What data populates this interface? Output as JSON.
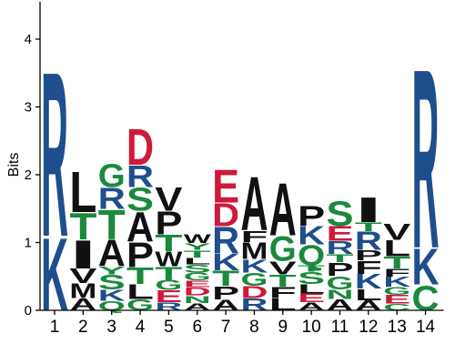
{
  "chart_data": {
    "type": "sequence-logo",
    "ylabel": "Bits",
    "ylim": [
      0,
      4.5
    ],
    "yticks": [
      "0",
      "1",
      "2",
      "3",
      "4"
    ],
    "xticks": [
      "1",
      "2",
      "3",
      "4",
      "5",
      "6",
      "7",
      "8",
      "9",
      "10",
      "11",
      "12",
      "13",
      "14"
    ],
    "colors": {
      "basic": "#1f4e8c",
      "acidic": "#d0183a",
      "polar": "#1a8a3c",
      "hydrophobic": "#111111"
    },
    "residue_colors": {
      "K": "basic",
      "R": "basic",
      "H": "basic",
      "D": "acidic",
      "E": "acidic",
      "S": "polar",
      "T": "polar",
      "Y": "polar",
      "C": "polar",
      "G": "polar",
      "N": "polar",
      "Q": "polar",
      "A": "hydrophobic",
      "V": "hydrophobic",
      "L": "hydrophobic",
      "I": "hydrophobic",
      "P": "hydrophobic",
      "F": "hydrophobic",
      "M": "hydrophobic",
      "W": "hydrophobic"
    },
    "positions": [
      {
        "position": "1",
        "stack": [
          [
            "K",
            1.1
          ],
          [
            "R",
            2.5
          ]
        ]
      },
      {
        "position": "2",
        "stack": [
          [
            "A",
            0.18
          ],
          [
            "M",
            0.22
          ],
          [
            "V",
            0.22
          ],
          [
            "I",
            0.43
          ],
          [
            "T",
            0.4
          ],
          [
            "L",
            0.62
          ]
        ]
      },
      {
        "position": "3",
        "stack": [
          [
            "Q",
            0.14
          ],
          [
            "K",
            0.17
          ],
          [
            "S",
            0.22
          ],
          [
            "Y",
            0.12
          ],
          [
            "A",
            0.4
          ],
          [
            "T",
            0.45
          ],
          [
            "R",
            0.32
          ],
          [
            "G",
            0.35
          ]
        ]
      },
      {
        "position": "4",
        "stack": [
          [
            "G",
            0.17
          ],
          [
            "L",
            0.22
          ],
          [
            "T",
            0.25
          ],
          [
            "P",
            0.38
          ],
          [
            "A",
            0.45
          ],
          [
            "S",
            0.35
          ],
          [
            "R",
            0.33
          ],
          [
            "D",
            0.55
          ]
        ]
      },
      {
        "position": "5",
        "stack": [
          [
            "R",
            0.12
          ],
          [
            "E",
            0.18
          ],
          [
            "G",
            0.15
          ],
          [
            "T",
            0.2
          ],
          [
            "W",
            0.22
          ],
          [
            "T",
            0.25
          ],
          [
            "P",
            0.35
          ],
          [
            "V",
            0.36
          ]
        ]
      },
      {
        "position": "6",
        "stack": [
          [
            "A",
            0.11
          ],
          [
            "N",
            0.11
          ],
          [
            "D",
            0.12
          ],
          [
            "E",
            0.1
          ],
          [
            "G",
            0.12
          ],
          [
            "S",
            0.12
          ],
          [
            "L",
            0.1
          ],
          [
            "T",
            0.11
          ],
          [
            "Y",
            0.1
          ],
          [
            "W",
            0.13
          ]
        ]
      },
      {
        "position": "7",
        "stack": [
          [
            "A",
            0.16
          ],
          [
            "P",
            0.2
          ],
          [
            "T",
            0.23
          ],
          [
            "K",
            0.25
          ],
          [
            "R",
            0.4
          ],
          [
            "D",
            0.35
          ],
          [
            "E",
            0.5
          ]
        ]
      },
      {
        "position": "8",
        "stack": [
          [
            "R",
            0.18
          ],
          [
            "D",
            0.18
          ],
          [
            "G",
            0.2
          ],
          [
            "K",
            0.2
          ],
          [
            "M",
            0.25
          ],
          [
            "F",
            0.17
          ],
          [
            "A",
            0.82
          ]
        ]
      },
      {
        "position": "9",
        "stack": [
          [
            "L",
            0.18
          ],
          [
            "F",
            0.17
          ],
          [
            "T",
            0.18
          ],
          [
            "V",
            0.2
          ],
          [
            "G",
            0.38
          ],
          [
            "A",
            0.8
          ]
        ]
      },
      {
        "position": "10",
        "stack": [
          [
            "A",
            0.12
          ],
          [
            "E",
            0.13
          ],
          [
            "L",
            0.14
          ],
          [
            "S",
            0.18
          ],
          [
            "T",
            0.1
          ],
          [
            "Q",
            0.3
          ],
          [
            "K",
            0.28
          ],
          [
            "P",
            0.3
          ]
        ]
      },
      {
        "position": "11",
        "stack": [
          [
            "A",
            0.17
          ],
          [
            "N",
            0.14
          ],
          [
            "G",
            0.2
          ],
          [
            "P",
            0.2
          ],
          [
            "T",
            0.12
          ],
          [
            "R",
            0.2
          ],
          [
            "E",
            0.22
          ],
          [
            "S",
            0.38
          ]
        ]
      },
      {
        "position": "12",
        "stack": [
          [
            "A",
            0.15
          ],
          [
            "L",
            0.17
          ],
          [
            "K",
            0.22
          ],
          [
            "F",
            0.2
          ],
          [
            "P",
            0.15
          ],
          [
            "R",
            0.28
          ],
          [
            "T",
            0.13
          ],
          [
            "I",
            0.38
          ]
        ]
      },
      {
        "position": "13",
        "stack": [
          [
            "C",
            0.1
          ],
          [
            "E",
            0.13
          ],
          [
            "G",
            0.12
          ],
          [
            "K",
            0.15
          ],
          [
            "F",
            0.12
          ],
          [
            "T",
            0.18
          ],
          [
            "L",
            0.24
          ],
          [
            "V",
            0.24
          ]
        ]
      },
      {
        "position": "14",
        "stack": [
          [
            "C",
            0.38
          ],
          [
            "K",
            0.55
          ],
          [
            "R",
            2.72
          ]
        ]
      }
    ]
  }
}
